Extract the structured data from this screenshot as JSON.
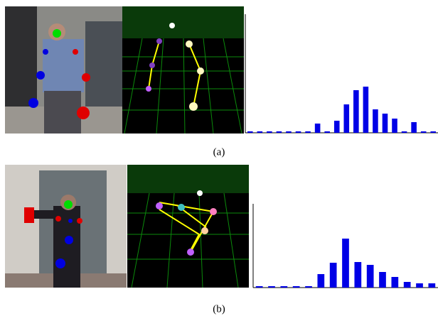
{
  "panels": [
    {
      "caption": "(a)",
      "histogram": {
        "type": "bar",
        "color": "#0000e6",
        "values": [
          2,
          2,
          2,
          2,
          2,
          2,
          2,
          13,
          2,
          17,
          40,
          60,
          65,
          33,
          27,
          20,
          2,
          15,
          2,
          2
        ],
        "ylim": [
          0,
          167
        ]
      }
    },
    {
      "caption": "(b)",
      "histogram": {
        "type": "bar",
        "color": "#0000e6",
        "values": [
          2,
          2,
          2,
          2,
          2,
          19,
          35,
          69,
          36,
          32,
          22,
          15,
          8,
          6,
          6
        ],
        "ylim": [
          0,
          118
        ]
      }
    }
  ]
}
